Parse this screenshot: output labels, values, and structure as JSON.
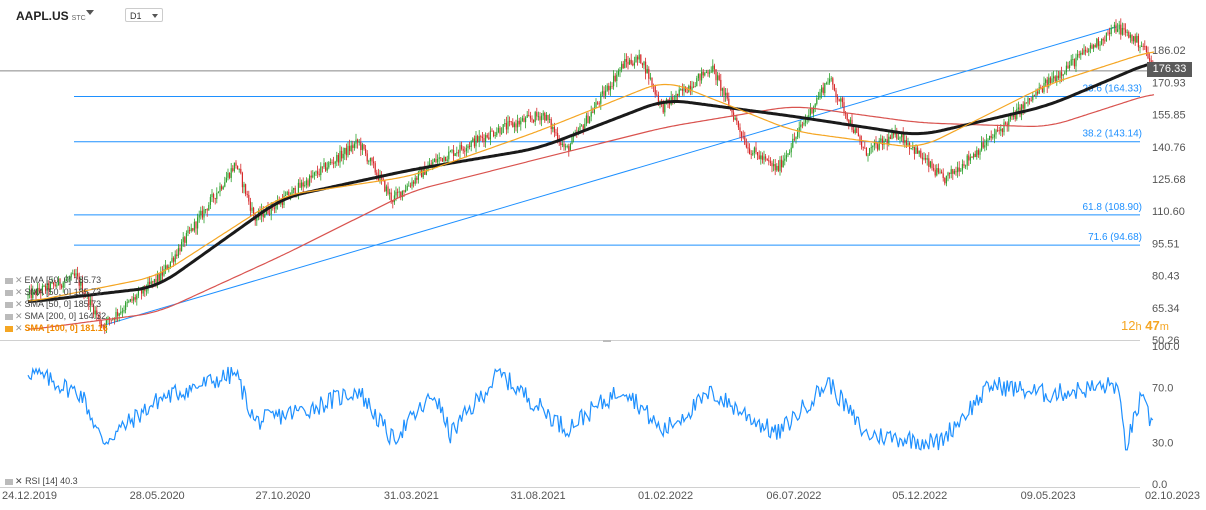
{
  "toolbar": {
    "symbol": "AAPL.US",
    "symbol_suffix": "STC",
    "timeframe": "D1"
  },
  "last_price": "176.33",
  "countdown": {
    "hours": "12",
    "h_unit": "h",
    "minutes": "47",
    "m_unit": "m"
  },
  "legend": [
    {
      "label": "EMA [50, 0] 185.73",
      "active": false
    },
    {
      "label": "SMA [50, 0] 185.73",
      "active": false
    },
    {
      "label": "SMA [50, 0] 185.73",
      "active": false
    },
    {
      "label": "SMA [200, 0] 164.32",
      "active": false
    },
    {
      "label": "SMA [100, 0] 181.16",
      "active": true
    }
  ],
  "rsi_label": "RSI [14] 40.3",
  "colors": {
    "candle_up": "#2ca02c",
    "candle_down": "#d62728",
    "sma_black": "#1a1a1a",
    "sma_orange": "#f5a623",
    "sma_red": "#d9534f",
    "fib": "#1e90ff",
    "rsi": "#1e90ff"
  },
  "chart_data": [
    {
      "type": "candlestick",
      "title": "AAPL.US D1",
      "y_axis_ticks": [
        "186.02",
        "170.93",
        "155.85",
        "140.76",
        "125.68",
        "110.60",
        "95.51",
        "80.43",
        "65.34",
        "50.26"
      ],
      "ylim": [
        50.26,
        201.1
      ],
      "x_axis_ticks": [
        "24.12.2019",
        "28.05.2020",
        "27.10.2020",
        "31.03.2021",
        "31.08.2021",
        "01.02.2022",
        "06.07.2022",
        "05.12.2022",
        "09.05.2023",
        "02.10.2023"
      ],
      "last_price": 176.33,
      "fibonacci_levels": [
        {
          "label": "23.6 (164.33)",
          "value": 164.33
        },
        {
          "label": "38.2 (143.14)",
          "value": 143.14
        },
        {
          "label": "61.8 (108.90)",
          "value": 108.9
        },
        {
          "label": "71.6 (94.68)",
          "value": 94.68
        }
      ],
      "trendline": {
        "from": [
          "2020-03-23",
          57
        ],
        "to": [
          "2023-07-31",
          197
        ]
      },
      "series": [
        {
          "name": "Price",
          "x": [
            "2019-12-24",
            "2020-02-20",
            "2020-03-23",
            "2020-06-01",
            "2020-08-31",
            "2020-09-23",
            "2020-10-27",
            "2021-01-26",
            "2021-03-08",
            "2021-04-28",
            "2021-07-15",
            "2021-09-07",
            "2021-10-04",
            "2021-12-13",
            "2022-01-03",
            "2022-01-28",
            "2022-03-29",
            "2022-05-12",
            "2022-06-16",
            "2022-08-17",
            "2022-09-30",
            "2022-11-10",
            "2023-01-03",
            "2023-03-02",
            "2023-05-09",
            "2023-07-31",
            "2023-09-01",
            "2023-09-14"
          ],
          "values": [
            71,
            80,
            57,
            80,
            133,
            107,
            116,
            143,
            116,
            134,
            149,
            156,
            139,
            180,
            182,
            159,
            178,
            140,
            130,
            173,
            138,
            147,
            125,
            145,
            171,
            197,
            188,
            176
          ]
        },
        {
          "name": "SMA 200",
          "x": [
            "2019-12-24",
            "2020-05-28",
            "2020-10-27",
            "2021-03-31",
            "2021-08-31",
            "2022-02-01",
            "2022-07-06",
            "2022-12-05",
            "2023-05-09",
            "2023-09-14"
          ],
          "values": [
            55,
            63,
            90,
            120,
            135,
            150,
            160,
            152,
            150,
            166
          ]
        },
        {
          "name": "SMA 100",
          "x": [
            "2019-12-24",
            "2020-05-28",
            "2020-10-27",
            "2021-03-31",
            "2021-08-31",
            "2022-02-01",
            "2022-07-06",
            "2022-12-05",
            "2023-05-09",
            "2023-09-14"
          ],
          "values": [
            68,
            75,
            117,
            130,
            140,
            163,
            155,
            146,
            160,
            181
          ]
        },
        {
          "name": "SMA 50",
          "x": [
            "2019-12-24",
            "2020-05-28",
            "2020-10-27",
            "2021-03-31",
            "2021-08-31",
            "2022-02-01",
            "2022-07-06",
            "2022-12-05",
            "2023-05-09",
            "2023-09-14"
          ],
          "values": [
            68,
            80,
            118,
            127,
            148,
            172,
            148,
            140,
            170,
            186
          ]
        }
      ]
    },
    {
      "type": "line",
      "title": "RSI [14] 40.3",
      "y_axis_ticks": [
        "100.0",
        "70.0",
        "30.0",
        "0.0"
      ],
      "ylim": [
        0,
        100
      ],
      "series": [
        {
          "name": "RSI",
          "x": [
            "2019-12-24",
            "2020-02-27",
            "2020-03-23",
            "2020-06-01",
            "2020-08-31",
            "2020-09-23",
            "2020-11-30",
            "2021-01-26",
            "2021-03-08",
            "2021-04-28",
            "2021-05-17",
            "2021-07-15",
            "2021-10-04",
            "2021-12-13",
            "2022-01-28",
            "2022-03-29",
            "2022-06-16",
            "2022-08-17",
            "2022-09-30",
            "2022-12-28",
            "2023-03-02",
            "2023-05-09",
            "2023-07-31",
            "2023-08-11",
            "2023-08-29",
            "2023-09-14"
          ],
          "values": [
            82,
            65,
            30,
            62,
            80,
            45,
            55,
            68,
            32,
            65,
            36,
            80,
            40,
            70,
            38,
            66,
            36,
            74,
            36,
            30,
            72,
            65,
            72,
            27,
            62,
            40
          ]
        }
      ]
    }
  ]
}
